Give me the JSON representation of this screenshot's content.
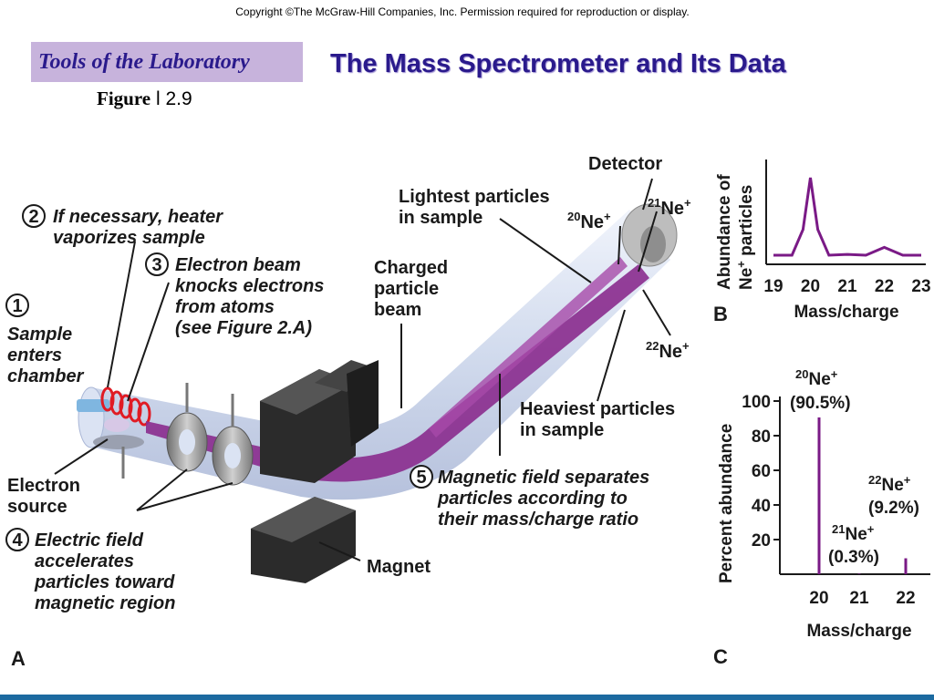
{
  "header": {
    "copyright": "Copyright ©The McGraw-Hill Companies, Inc.  Permission required for reproduction or display.",
    "section_label": "Tools of the Laboratory",
    "title": "The Mass Spectrometer and Its Data",
    "figure_word": "Figure",
    "figure_number": "l 2.9"
  },
  "panel_a": {
    "letter": "A",
    "step1": [
      "Sample",
      "enters",
      "chamber"
    ],
    "step2": [
      "If necessary, heater",
      "vaporizes sample"
    ],
    "step3": [
      "Electron beam",
      "knocks electrons",
      "from atoms",
      "(see Figure 2.A)"
    ],
    "step4": [
      "Electric field",
      "accelerates",
      "particles toward",
      "magnetic region"
    ],
    "step5": [
      "Magnetic field separates",
      "particles according to",
      "their mass/charge ratio"
    ],
    "num1": "1",
    "num2": "2",
    "num3": "3",
    "num4": "4",
    "num5": "5",
    "electron_source": [
      "Electron",
      "source"
    ],
    "magnet": "Magnet",
    "detector": "Detector",
    "lightest": [
      "Lightest particles",
      "in sample"
    ],
    "heaviest": [
      "Heaviest particles",
      "in sample"
    ],
    "charged_beam": [
      "Charged",
      "particle",
      "beam"
    ],
    "ion20": {
      "mass": "20",
      "symbol": "Ne",
      "charge": "+"
    },
    "ion21": {
      "mass": "21",
      "symbol": "Ne",
      "charge": "+"
    },
    "ion22": {
      "mass": "22",
      "symbol": "Ne",
      "charge": "+"
    }
  },
  "panel_b": {
    "letter": "B",
    "ylabel_line1": "Abundance of",
    "ylabel_line2_prefix": "Ne",
    "ylabel_line2_sup": "+",
    "ylabel_line2_suffix": " particles",
    "xlabel": "Mass/charge"
  },
  "panel_c": {
    "letter": "C",
    "ylabel": "Percent abundance",
    "xlabel": "Mass/charge",
    "peak_labels": [
      {
        "mass": "20",
        "symbol": "Ne",
        "charge": "+",
        "percent": "(90.5%)"
      },
      {
        "mass": "21",
        "symbol": "Ne",
        "charge": "+",
        "percent": "(0.3%)"
      },
      {
        "mass": "22",
        "symbol": "Ne",
        "charge": "+",
        "percent": "(9.2%)"
      }
    ]
  },
  "colors": {
    "title": "#2a1a8c",
    "tools_box": "#c7b3dc",
    "beam": "#8b2f8f",
    "tube": "#c9d4ea",
    "magnet": "#2b2b2b",
    "peak": "#7a1a86",
    "heater_coil": "#e01b24"
  },
  "chart_data": [
    {
      "type": "line",
      "x": [
        19,
        19.5,
        19.8,
        20,
        20.2,
        20.5,
        21,
        21.5,
        22,
        22.5,
        23
      ],
      "series": [
        {
          "values": [
            0,
            0,
            30,
            90.5,
            30,
            0,
            1,
            0,
            9.2,
            0,
            0
          ]
        }
      ],
      "xlabel": "Mass/charge",
      "ylabel": "Abundance of Ne+ particles",
      "xticks": [
        "19",
        "20",
        "21",
        "22",
        "23"
      ],
      "xlim": [
        19,
        23
      ]
    },
    {
      "type": "bar",
      "x": [
        20,
        21,
        22
      ],
      "values": [
        90.5,
        0.3,
        9.2
      ],
      "xlabel": "Mass/charge",
      "ylabel": "Percent abundance",
      "xticks": [
        "20",
        "21",
        "22"
      ],
      "yticks": [
        "20",
        "40",
        "60",
        "80",
        "100"
      ],
      "ylim": [
        0,
        100
      ]
    }
  ]
}
